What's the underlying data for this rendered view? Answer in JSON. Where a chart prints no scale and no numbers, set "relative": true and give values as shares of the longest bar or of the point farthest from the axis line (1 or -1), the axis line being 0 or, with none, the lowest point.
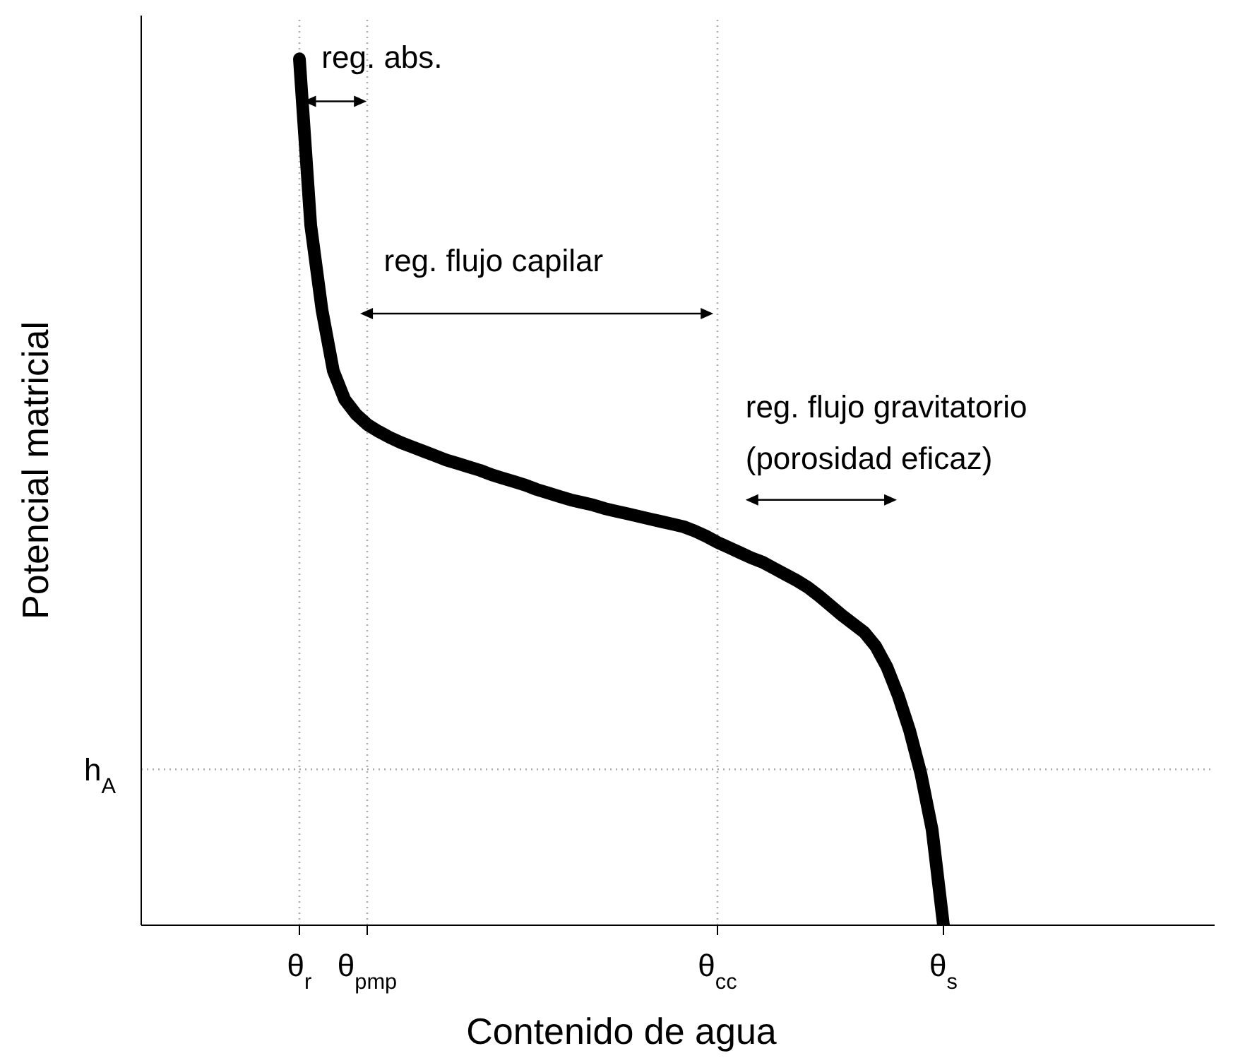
{
  "chart_data": {
    "type": "line",
    "relative": true,
    "xlabel": "Contenido de agua",
    "ylabel": "Potencial matricial",
    "categories": [
      null,
      null,
      null,
      null,
      null,
      null,
      null,
      null,
      null,
      null,
      null,
      null,
      null,
      null,
      "θ$_{r}$",
      null,
      null,
      null,
      null,
      null,
      "θ$_{pmp}$",
      null,
      null,
      null,
      null,
      null,
      null,
      null,
      null,
      null,
      null,
      null,
      null,
      null,
      null,
      null,
      null,
      null,
      null,
      null,
      null,
      null,
      null,
      null,
      null,
      null,
      null,
      null,
      null,
      null,
      null,
      "θ$_{cc}$",
      null,
      null,
      null,
      null,
      null,
      null,
      null,
      null,
      null,
      null,
      null,
      null,
      null,
      null,
      null,
      null,
      null,
      null,
      null,
      "θ$_{s}$",
      null,
      null,
      null,
      null,
      null,
      null,
      null,
      null,
      null,
      null,
      null,
      null,
      null,
      null,
      null,
      null,
      null,
      null,
      null,
      null,
      null,
      null,
      null,
      null
    ],
    "series": [
      {
        "color": "#000000",
        "values": [
          null,
          null,
          null,
          null,
          null,
          null,
          null,
          null,
          null,
          null,
          null,
          null,
          null,
          null,
          1.0,
          0.808,
          0.71,
          0.64,
          0.607,
          0.59,
          0.578,
          0.57,
          0.563,
          0.557,
          0.552,
          0.547,
          0.542,
          0.537,
          0.533,
          0.529,
          0.525,
          0.52,
          0.516,
          0.512,
          0.508,
          0.503,
          0.499,
          0.495,
          0.491,
          0.488,
          0.485,
          0.481,
          0.478,
          0.475,
          0.472,
          0.469,
          0.466,
          0.463,
          0.46,
          0.455,
          0.449,
          0.442,
          0.436,
          0.43,
          0.424,
          0.419,
          0.412,
          0.405,
          0.398,
          0.39,
          0.38,
          0.369,
          0.358,
          0.348,
          0.338,
          0.322,
          0.298,
          0.265,
          0.225,
          0.175,
          0.11,
          0,
          null,
          null,
          null,
          null,
          null,
          null,
          null,
          null,
          null,
          null,
          null,
          null,
          null,
          null,
          null,
          null,
          null,
          null,
          null,
          null,
          null,
          null,
          null,
          null
        ]
      }
    ],
    "ref_lines": [
      {
        "axis": "x",
        "value": "θ$_{r}$",
        "label": null,
        "color": "#aaaaaa",
        "line_style": "dotted"
      },
      {
        "axis": "x",
        "value": "θ$_{pmp}$",
        "label": null,
        "color": "#aaaaaa",
        "line_style": "dotted"
      },
      {
        "axis": "x",
        "value": "θ$_{cc}$",
        "label": null,
        "color": "#aaaaaa",
        "line_style": "dotted"
      },
      {
        "axis": "y",
        "value": 0.18,
        "label": "h$_{A}$",
        "color": "#aaaaaa",
        "line_style": "dotted"
      }
    ],
    "annotations": [
      "reg. abs.",
      "reg. flujo capilar",
      "reg. flujo gravitatorio\n(porosidad eficaz)"
    ],
    "grid": false,
    "legend": false,
    "marker": "none",
    "line_style": "solid"
  }
}
